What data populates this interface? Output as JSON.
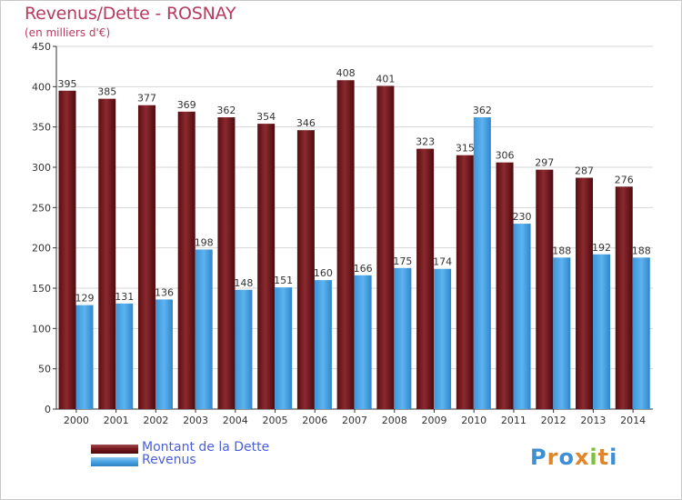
{
  "title": "Revenus/Dette - ROSNAY",
  "subtitle": "(en milliers d'€)",
  "logo_text": "Proxiti",
  "colors": {
    "debt": "#7a1a1f",
    "revenue": "#4ea6e6",
    "title": "#b83a5e"
  },
  "legend": [
    {
      "label": "Montant de la Dette",
      "icon": "dark-red-bar-swatch"
    },
    {
      "label": "Revenus",
      "icon": "blue-bar-swatch"
    }
  ],
  "chart_data": {
    "type": "bar",
    "title": "Revenus/Dette - ROSNAY",
    "subtitle": "(en milliers d'€)",
    "categories": [
      "2000",
      "2001",
      "2002",
      "2003",
      "2004",
      "2005",
      "2006",
      "2007",
      "2008",
      "2009",
      "2010",
      "2011",
      "2012",
      "2013",
      "2014"
    ],
    "series": [
      {
        "name": "Montant de la Dette",
        "values": [
          395,
          385,
          377,
          369,
          362,
          354,
          346,
          408,
          401,
          323,
          315,
          306,
          297,
          287,
          276
        ]
      },
      {
        "name": "Revenus",
        "values": [
          129,
          131,
          136,
          198,
          148,
          151,
          160,
          166,
          175,
          174,
          362,
          230,
          188,
          192,
          188
        ]
      }
    ],
    "ylim": [
      0,
      450
    ],
    "yticks": [
      0,
      50,
      100,
      150,
      200,
      250,
      300,
      350,
      400,
      450
    ],
    "grid": true,
    "legend_position": "bottom-left"
  }
}
